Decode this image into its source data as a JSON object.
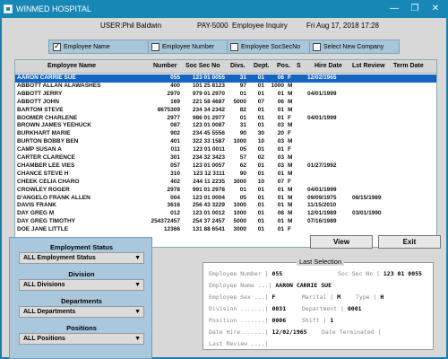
{
  "window": {
    "title": "WINMED HOSPITAL",
    "min": "—",
    "max": "❐",
    "close": "✕"
  },
  "info": {
    "user": "USER:Phil Baldwin",
    "program": "PAY-5000",
    "screen": "Employee Inquiry",
    "datetime": "Fri Aug 17, 2018 17:28"
  },
  "sort_options": [
    {
      "label": "Employee Name",
      "checked": true
    },
    {
      "label": "Employee Number",
      "checked": false
    },
    {
      "label": "Employee SocSecNo",
      "checked": false
    },
    {
      "label": "Select New Company",
      "checked": false
    }
  ],
  "columns": [
    "Employee Name",
    "Number",
    "Soc Sec No",
    "Divs.",
    "Dept.",
    "Pos.",
    "S",
    "Hire Date",
    "Lst Review",
    "Term Date"
  ],
  "rows": [
    [
      "AARON CARRIE SUE",
      "055",
      "123 01 0055",
      "31",
      "01",
      "06",
      "F",
      "12/02/1965",
      "",
      ""
    ],
    [
      "ABBOTT ALLAN ALAWASHES",
      "400",
      "101 25 8123",
      "97",
      "01",
      "1000",
      "M",
      "",
      "",
      ""
    ],
    [
      "ABBOTT JERRY",
      "2970",
      "979 01 2970",
      "01",
      "01",
      "01",
      "M",
      "04/01/1999",
      "",
      ""
    ],
    [
      "ABBOTT JOHN",
      "169",
      "221 58 4687",
      "5000",
      "07",
      "06",
      "M",
      "",
      "",
      ""
    ],
    [
      "BARTOM STEVE",
      "8675309",
      "234 34 2342",
      "82",
      "01",
      "01",
      "M",
      "",
      "",
      ""
    ],
    [
      "BOOMER CHARLENE",
      "2977",
      "986 01 2977",
      "01",
      "01",
      "01",
      "F",
      "04/01/1999",
      "",
      ""
    ],
    [
      "BROWN JAMES YEEHUCK",
      "087",
      "123 01 0087",
      "31",
      "01",
      "03",
      "M",
      "",
      "",
      ""
    ],
    [
      "BURKHART MARIE",
      "902",
      "234 45 5556",
      "90",
      "30",
      "20",
      "F",
      "",
      "",
      ""
    ],
    [
      "BURTON BOBBY BEN",
      "401",
      "322 33 1587",
      "1000",
      "10",
      "03",
      "M",
      "",
      "",
      ""
    ],
    [
      "CAMP SUSAN A",
      "011",
      "123 01 0011",
      "05",
      "01",
      "01",
      "F",
      "",
      "",
      ""
    ],
    [
      "CARTER CLARENCE",
      "301",
      "234 32 3423",
      "57",
      "02",
      "03",
      "M",
      "",
      "",
      ""
    ],
    [
      "CHAMBER LEE VIES",
      "057",
      "123 01 0057",
      "62",
      "01",
      "03",
      "M",
      "01/27/1992",
      "",
      ""
    ],
    [
      "CHANCE STEVE H",
      "310",
      "123 12 3111",
      "90",
      "01",
      "01",
      "M",
      "",
      "",
      ""
    ],
    [
      "CHEEK CELIA CHARO",
      "402",
      "244 11 2235",
      "3000",
      "10",
      "07",
      "F",
      "",
      "",
      ""
    ],
    [
      "CROWLEY ROGER",
      "2978",
      "991 01 2978",
      "01",
      "01",
      "01",
      "M",
      "04/01/1999",
      "",
      ""
    ],
    [
      "D'ANGELO FRANK ALLEN",
      "004",
      "123 01 0004",
      "05",
      "01",
      "01",
      "M",
      "09/09/1975",
      "08/15/1989",
      ""
    ],
    [
      "DAVIS FRANK",
      "3616",
      "256 43 3229",
      "1000",
      "01",
      "01",
      "M",
      "11/15/2010",
      "",
      ""
    ],
    [
      "DAY GREG M",
      "012",
      "123 01 0012",
      "1000",
      "01",
      "08",
      "M",
      "12/01/1989",
      "03/01/1990",
      ""
    ],
    [
      "DAY GREG TIMOTHY",
      "254372457",
      "254 37 2457",
      "5000",
      "01",
      "01",
      "M",
      "07/16/1989",
      "",
      ""
    ],
    [
      "DOE JANE LITTLE",
      "12366",
      "131 88 6541",
      "3000",
      "01",
      "01",
      "F",
      "",
      "",
      ""
    ]
  ],
  "buttons": {
    "view": "View",
    "exit": "Exit"
  },
  "filters": {
    "employment_status": {
      "label": "Employment Status",
      "value": "ALL Employment Status"
    },
    "division": {
      "label": "Division",
      "value": "ALL Divisions"
    },
    "departments": {
      "label": "Departments",
      "value": "ALL Departments"
    },
    "positions": {
      "label": "Positions",
      "value": "ALL Positions"
    }
  },
  "last_selection": {
    "title": "Last Selection",
    "employee_number_label": "Employee Number |",
    "employee_number": "055",
    "soc_sec_label": "Soc Sec No |",
    "soc_sec": "123 01 0055",
    "employee_name_label": "Employee Name ...|",
    "employee_name": "AARON CARRIE SUE",
    "employee_sex_label": "Employee Sex ...|",
    "employee_sex": "F",
    "marital_label": "Marital |",
    "marital": "M",
    "type_label": "Type |",
    "type": "H",
    "division_label": "Division .......|",
    "division": "0031",
    "department_label": "Department |",
    "department": "0001",
    "position_label": "Position .......|",
    "position": "0006",
    "shift_label": "Shift |",
    "shift": "1",
    "date_hire_label": "Date Hire.......|",
    "date_hire": "12/02/1965",
    "date_terminated_label": "Date Terminated |",
    "date_terminated": "",
    "last_review_label": "Last Review ....|",
    "last_review": ""
  }
}
